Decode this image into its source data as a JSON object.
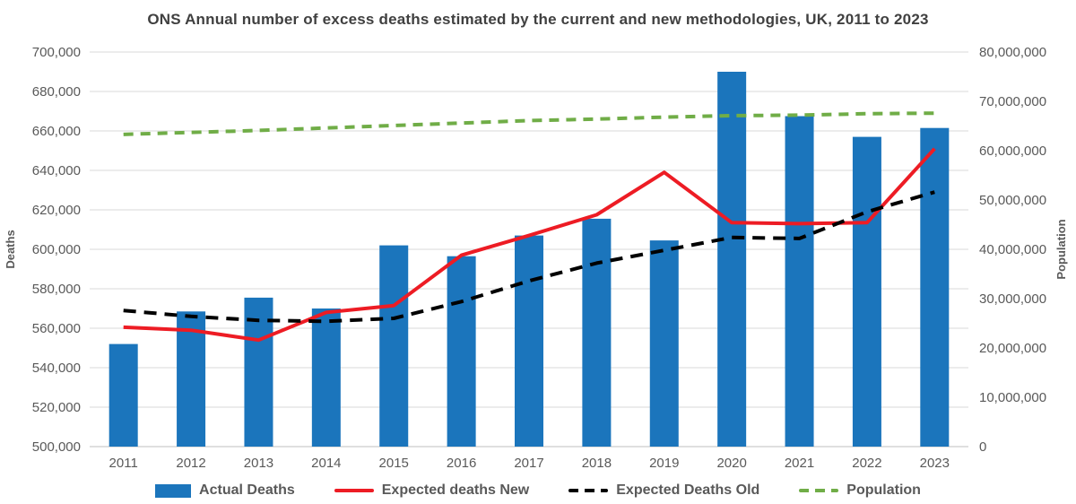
{
  "title": "ONS Annual number of excess deaths estimated by the current and new methodologies, UK, 2011 to 2023",
  "chart_data": {
    "type": "combo-bar-line",
    "categories": [
      "2011",
      "2012",
      "2013",
      "2014",
      "2015",
      "2016",
      "2017",
      "2018",
      "2019",
      "2020",
      "2021",
      "2022",
      "2023"
    ],
    "series": [
      {
        "name": "Actual Deaths",
        "type": "bar",
        "axis": "left",
        "color": "#1b75bc",
        "values": [
          552000,
          568500,
          575500,
          570000,
          602000,
          596500,
          607000,
          615500,
          604500,
          690000,
          667500,
          657000,
          661500
        ]
      },
      {
        "name": "Expected deaths New",
        "type": "line",
        "style": "solid",
        "axis": "left",
        "color": "#ed1c24",
        "values": [
          560500,
          559000,
          554000,
          568000,
          571500,
          597000,
          607000,
          617500,
          639000,
          613500,
          613000,
          613500,
          651000
        ]
      },
      {
        "name": "Expected Deaths Old",
        "type": "line",
        "style": "dashed",
        "axis": "left",
        "color": "#000000",
        "values": [
          569000,
          566000,
          564000,
          563500,
          565000,
          573500,
          584000,
          593000,
          599500,
          606000,
          605500,
          619000,
          629000
        ]
      },
      {
        "name": "Population",
        "type": "line",
        "style": "dashed",
        "axis": "right",
        "color": "#70ad47",
        "values": [
          63300000,
          63700000,
          64100000,
          64600000,
          65100000,
          65600000,
          66100000,
          66400000,
          66800000,
          67100000,
          67200000,
          67500000,
          67600000
        ]
      }
    ],
    "left_axis": {
      "label": "Deaths",
      "min": 500000,
      "max": 700000,
      "step": 20000,
      "ticks": [
        "700,000",
        "680,000",
        "660,000",
        "640,000",
        "620,000",
        "600,000",
        "580,000",
        "560,000",
        "540,000",
        "520,000",
        "500,000"
      ]
    },
    "right_axis": {
      "label": "Population",
      "min": 0,
      "max": 80000000,
      "step": 10000000,
      "ticks": [
        "80,000,000",
        "70,000,000",
        "60,000,000",
        "50,000,000",
        "40,000,000",
        "30,000,000",
        "20,000,000",
        "10,000,000",
        "0"
      ]
    },
    "grid": true,
    "legend_position": "bottom",
    "colors": {
      "gridline": "#d9d9d9",
      "baseline": "#bfbfbf",
      "title_text": "#404040",
      "tick_text": "#595959"
    }
  }
}
